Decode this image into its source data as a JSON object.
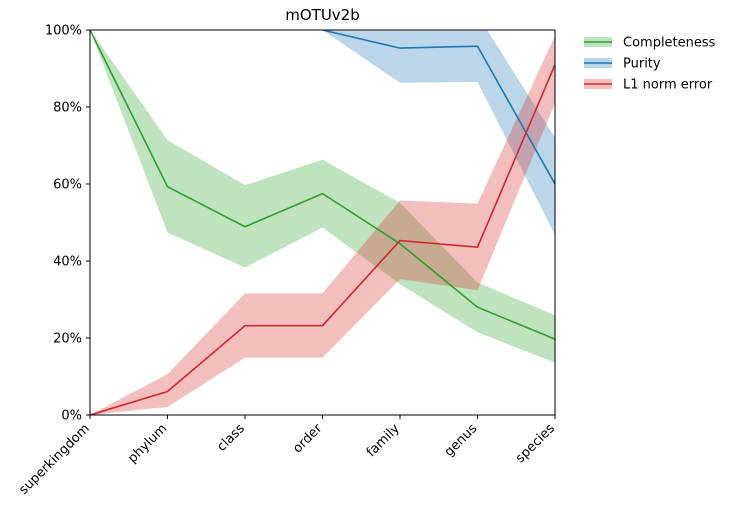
{
  "chart_data": {
    "type": "line",
    "title": "mOTUv2b",
    "categories": [
      "superkingdom",
      "phylum",
      "class",
      "order",
      "family",
      "genus",
      "species"
    ],
    "ylim": [
      0,
      100
    ],
    "yticks": [
      "0%",
      "20%",
      "40%",
      "60%",
      "80%",
      "100%"
    ],
    "ytick_values": [
      0,
      20,
      40,
      60,
      80,
      100
    ],
    "grid": false,
    "legend_position": "outside-top-right",
    "series": [
      {
        "name": "Completeness",
        "color": "#2ca02c",
        "band_color": "#2ca02c",
        "values": [
          100,
          59.3,
          48.9,
          57.5,
          44.5,
          28.0,
          19.7
        ],
        "lower": [
          100,
          47.4,
          38.3,
          48.7,
          34.0,
          21.5,
          13.6
        ],
        "upper": [
          100,
          71.4,
          59.7,
          66.3,
          55.1,
          34.4,
          25.9
        ]
      },
      {
        "name": "Purity",
        "color": "#1f77b4",
        "band_color": "#1f77b4",
        "values": [
          null,
          null,
          null,
          100,
          95.3,
          95.8,
          60.0
        ],
        "lower": [
          null,
          null,
          null,
          100,
          86.3,
          86.5,
          46.8
        ],
        "upper": [
          null,
          null,
          null,
          100,
          104,
          104,
          72.0
        ]
      },
      {
        "name": "L1 norm error",
        "color": "#d62728",
        "band_color": "#d62728",
        "values": [
          0,
          6.1,
          23.2,
          23.2,
          45.3,
          43.6,
          91.0
        ],
        "lower": [
          0,
          2.1,
          14.9,
          14.9,
          35.3,
          32.4,
          81.0
        ],
        "upper": [
          0,
          10.6,
          31.6,
          31.6,
          55.7,
          54.9,
          98.5
        ]
      }
    ]
  }
}
